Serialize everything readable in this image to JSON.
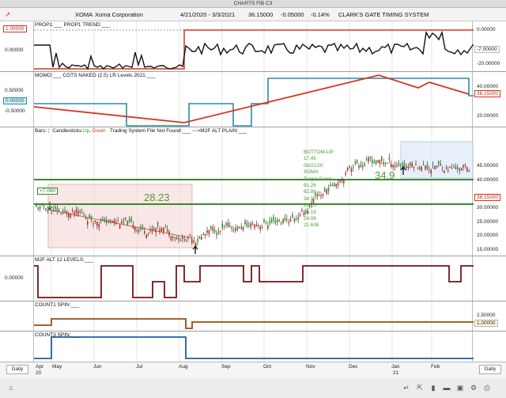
{
  "window": {
    "title": "CHARTS FIB C3"
  },
  "header": {
    "symbol": "XOMA",
    "company": "Xoma Corporation",
    "date_range": "4/21/2020 - 3/3/2021",
    "last": "36.15000",
    "change": "-0.05000",
    "pct": "-0.14%",
    "system": "CLARK'S GATE TIMING SYSTEM"
  },
  "panels": {
    "prop": {
      "title": "PROP1:___   PROP1 TREND:___",
      "left_tag": "1.00000",
      "left_label": "0.00000",
      "right_labels": [
        "0.00000",
        "-20.00000"
      ],
      "right_tag": "-7.00000"
    },
    "momo": {
      "title": "MOMO:___   CGTS NAKED (2.5) LR Levels 2021:___",
      "left_labels": [
        "0.50000",
        "-0.50000"
      ],
      "left_tag": "0.00000",
      "right_labels": [
        "40.00000",
        "20.00000"
      ],
      "right_tag": "36.15000"
    },
    "bars": {
      "title_prefix": "Bars:",
      "title_candles": "Candlesticks:",
      "title_up": "Up",
      "title_comma": ",",
      "title_down": "Down",
      "title_rest": "Trading System File Not Found:___   --->M2F ALT PLAIN:___",
      "right_labels": [
        "45.00000",
        "40.00000",
        "30.00000",
        "25.00000",
        "20.00000",
        "15.00000"
      ],
      "right_tag": "36.15000",
      "left_tag": "+7.090",
      "big_left": "28.23",
      "big_right": "34.9",
      "annotations": [
        "BOTTOM-UP",
        "17.45",
        "09/21/20",
        "XOMA",
        "Target Gates",
        "91.26",
        "62.80",
        "34.90",
        "28.23",
        "26.18",
        "24.08",
        "21.638"
      ]
    },
    "m2f": {
      "title": "M2F ALT 12 LEVELS:___",
      "left_label": "0.00000"
    },
    "count1": {
      "title": "COUNT1 SPIN:___",
      "right_labels": [
        "2.50000"
      ],
      "right_tag": "1.00000"
    },
    "count3": {
      "title": "COUNT3 SPIN:___"
    }
  },
  "xaxis": {
    "months": [
      "Apr",
      "May",
      "Jun",
      "Jul",
      "Aug",
      "Sep",
      "Oct",
      "Nov",
      "Dec",
      "Jan",
      "Feb"
    ],
    "years": [
      "20",
      "21"
    ],
    "period_left": "Daily",
    "period_right": "Daily"
  },
  "icons": [
    "home-icon",
    "arrow-icon",
    "candle-icon",
    "bars-icon",
    "folder-icon",
    "gear-icon"
  ],
  "colors": {
    "red": "#d9341e",
    "teal": "#2a8ca0",
    "green": "#4e9a33",
    "maroon": "#7a1212",
    "brown": "#9c4a12",
    "blue": "#1d5fa8"
  }
}
